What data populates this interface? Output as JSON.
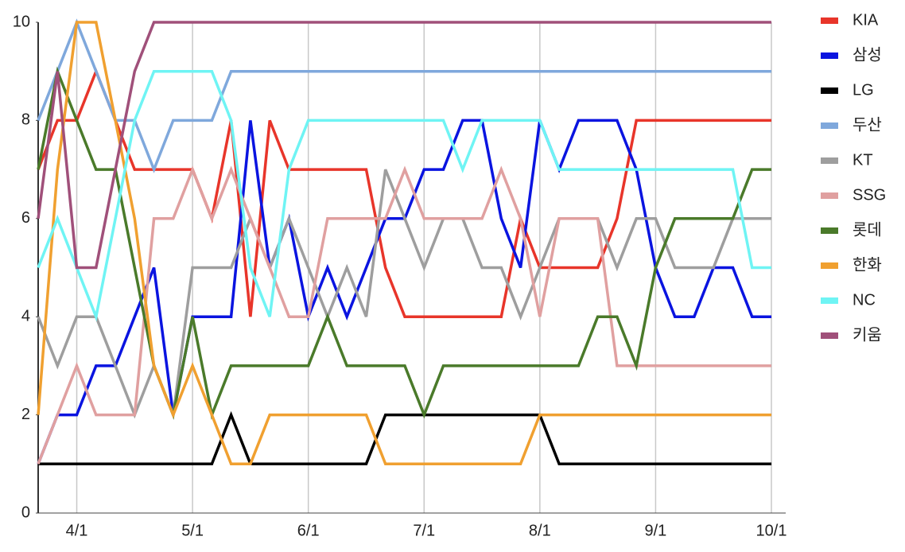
{
  "chart_data": {
    "type": "line",
    "categories": [
      null,
      null,
      "4/1",
      null,
      null,
      null,
      null,
      null,
      "5/1",
      null,
      null,
      null,
      null,
      null,
      "6/1",
      null,
      null,
      null,
      null,
      null,
      "7/1",
      null,
      null,
      null,
      null,
      null,
      "8/1",
      null,
      null,
      null,
      null,
      null,
      "9/1",
      null,
      null,
      null,
      null,
      null,
      "10/1"
    ],
    "ylim": [
      0,
      10
    ],
    "yticks": [
      0,
      2,
      4,
      6,
      8,
      10
    ],
    "grid": "x",
    "legend": "right",
    "series": [
      {
        "name": "KIA",
        "color": "#e8352a",
        "values": [
          7,
          8,
          8,
          9,
          8,
          7,
          7,
          7,
          7,
          6,
          8,
          4,
          8,
          7,
          7,
          7,
          7,
          7,
          5,
          4,
          4,
          4,
          4,
          4,
          4,
          6,
          5,
          5,
          5,
          5,
          6,
          8,
          8,
          8,
          8,
          8,
          8,
          8,
          8
        ]
      },
      {
        "name": "삼성",
        "color": "#0a14e0",
        "values": [
          1,
          2,
          2,
          3,
          3,
          4,
          5,
          2,
          4,
          4,
          4,
          8,
          5,
          6,
          4,
          5,
          4,
          5,
          6,
          6,
          7,
          7,
          8,
          8,
          6,
          5,
          8,
          7,
          8,
          8,
          8,
          7,
          5,
          4,
          4,
          5,
          5,
          4,
          4
        ]
      },
      {
        "name": "LG",
        "color": "#000000",
        "values": [
          1,
          1,
          1,
          1,
          1,
          1,
          1,
          1,
          1,
          1,
          2,
          1,
          1,
          1,
          1,
          1,
          1,
          1,
          2,
          2,
          2,
          2,
          2,
          2,
          2,
          2,
          2,
          1,
          1,
          1,
          1,
          1,
          1,
          1,
          1,
          1,
          1,
          1,
          1
        ]
      },
      {
        "name": "두산",
        "color": "#7fa8dc",
        "values": [
          8,
          9,
          10,
          9,
          8,
          8,
          7,
          8,
          8,
          8,
          9,
          9,
          9,
          9,
          9,
          9,
          9,
          9,
          9,
          9,
          9,
          9,
          9,
          9,
          9,
          9,
          9,
          9,
          9,
          9,
          9,
          9,
          9,
          9,
          9,
          9,
          9,
          9,
          9
        ]
      },
      {
        "name": "KT",
        "color": "#9e9e9e",
        "values": [
          4,
          3,
          4,
          4,
          3,
          2,
          3,
          2,
          5,
          5,
          5,
          6,
          5,
          6,
          5,
          4,
          5,
          4,
          7,
          6,
          5,
          6,
          6,
          5,
          5,
          4,
          5,
          6,
          6,
          6,
          5,
          6,
          6,
          5,
          5,
          5,
          6,
          6,
          6
        ]
      },
      {
        "name": "SSG",
        "color": "#e0a0a0",
        "values": [
          1,
          2,
          3,
          2,
          2,
          2,
          6,
          6,
          7,
          6,
          7,
          6,
          5,
          4,
          4,
          6,
          6,
          6,
          6,
          7,
          6,
          6,
          6,
          6,
          7,
          6,
          4,
          6,
          6,
          6,
          3,
          3,
          3,
          3,
          3,
          3,
          3,
          3,
          3
        ]
      },
      {
        "name": "롯데",
        "color": "#4a7a2a",
        "values": [
          7,
          9,
          8,
          7,
          7,
          5,
          3,
          2,
          4,
          2,
          3,
          3,
          3,
          3,
          3,
          4,
          3,
          3,
          3,
          3,
          2,
          3,
          3,
          3,
          3,
          3,
          3,
          3,
          3,
          4,
          4,
          3,
          5,
          6,
          6,
          6,
          6,
          7,
          7
        ]
      },
      {
        "name": "한화",
        "color": "#f0a030",
        "values": [
          2,
          7,
          10,
          10,
          8,
          6,
          3,
          2,
          3,
          2,
          1,
          1,
          2,
          2,
          2,
          2,
          2,
          2,
          1,
          1,
          1,
          1,
          1,
          1,
          1,
          1,
          2,
          2,
          2,
          2,
          2,
          2,
          2,
          2,
          2,
          2,
          2,
          2,
          2
        ]
      },
      {
        "name": "NC",
        "color": "#6ff4f4",
        "values": [
          5,
          6,
          5,
          4,
          6,
          8,
          9,
          9,
          9,
          9,
          8,
          5,
          4,
          7,
          8,
          8,
          8,
          8,
          8,
          8,
          8,
          8,
          7,
          8,
          8,
          8,
          8,
          7,
          7,
          7,
          7,
          7,
          7,
          7,
          7,
          7,
          7,
          5,
          5
        ]
      },
      {
        "name": "키움",
        "color": "#a0507a",
        "values": [
          6,
          9,
          5,
          5,
          7,
          9,
          10,
          10,
          10,
          10,
          10,
          10,
          10,
          10,
          10,
          10,
          10,
          10,
          10,
          10,
          10,
          10,
          10,
          10,
          10,
          10,
          10,
          10,
          10,
          10,
          10,
          10,
          10,
          10,
          10,
          10,
          10,
          10,
          10
        ]
      }
    ]
  }
}
